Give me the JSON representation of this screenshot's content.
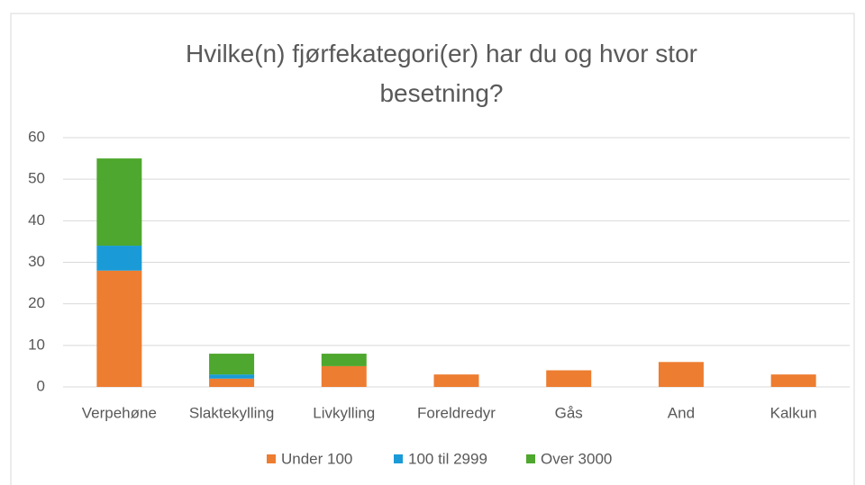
{
  "chart_data": {
    "type": "stacked_bar",
    "title": "Hvilke(n) fjørfekategori(er) har du og hvor stor besetning?",
    "categories": [
      "Verpehøne",
      "Slaktekylling",
      "Livkylling",
      "Foreldredyr",
      "Gås",
      "And",
      "Kalkun"
    ],
    "series": [
      {
        "name": "Under 100",
        "color": "#ed7d31",
        "values": [
          28,
          2,
          5,
          3,
          4,
          6,
          3
        ]
      },
      {
        "name": "100 til 2999",
        "color": "#1a9bd7",
        "values": [
          6,
          1,
          0,
          0,
          0,
          0,
          0
        ]
      },
      {
        "name": "Over 3000",
        "color": "#4ea72e",
        "values": [
          21,
          5,
          3,
          0,
          0,
          0,
          0
        ]
      }
    ],
    "ylim": [
      0,
      60
    ],
    "yticks": [
      0,
      10,
      20,
      30,
      40,
      50,
      60
    ],
    "grid": true,
    "legend": "bottom"
  }
}
